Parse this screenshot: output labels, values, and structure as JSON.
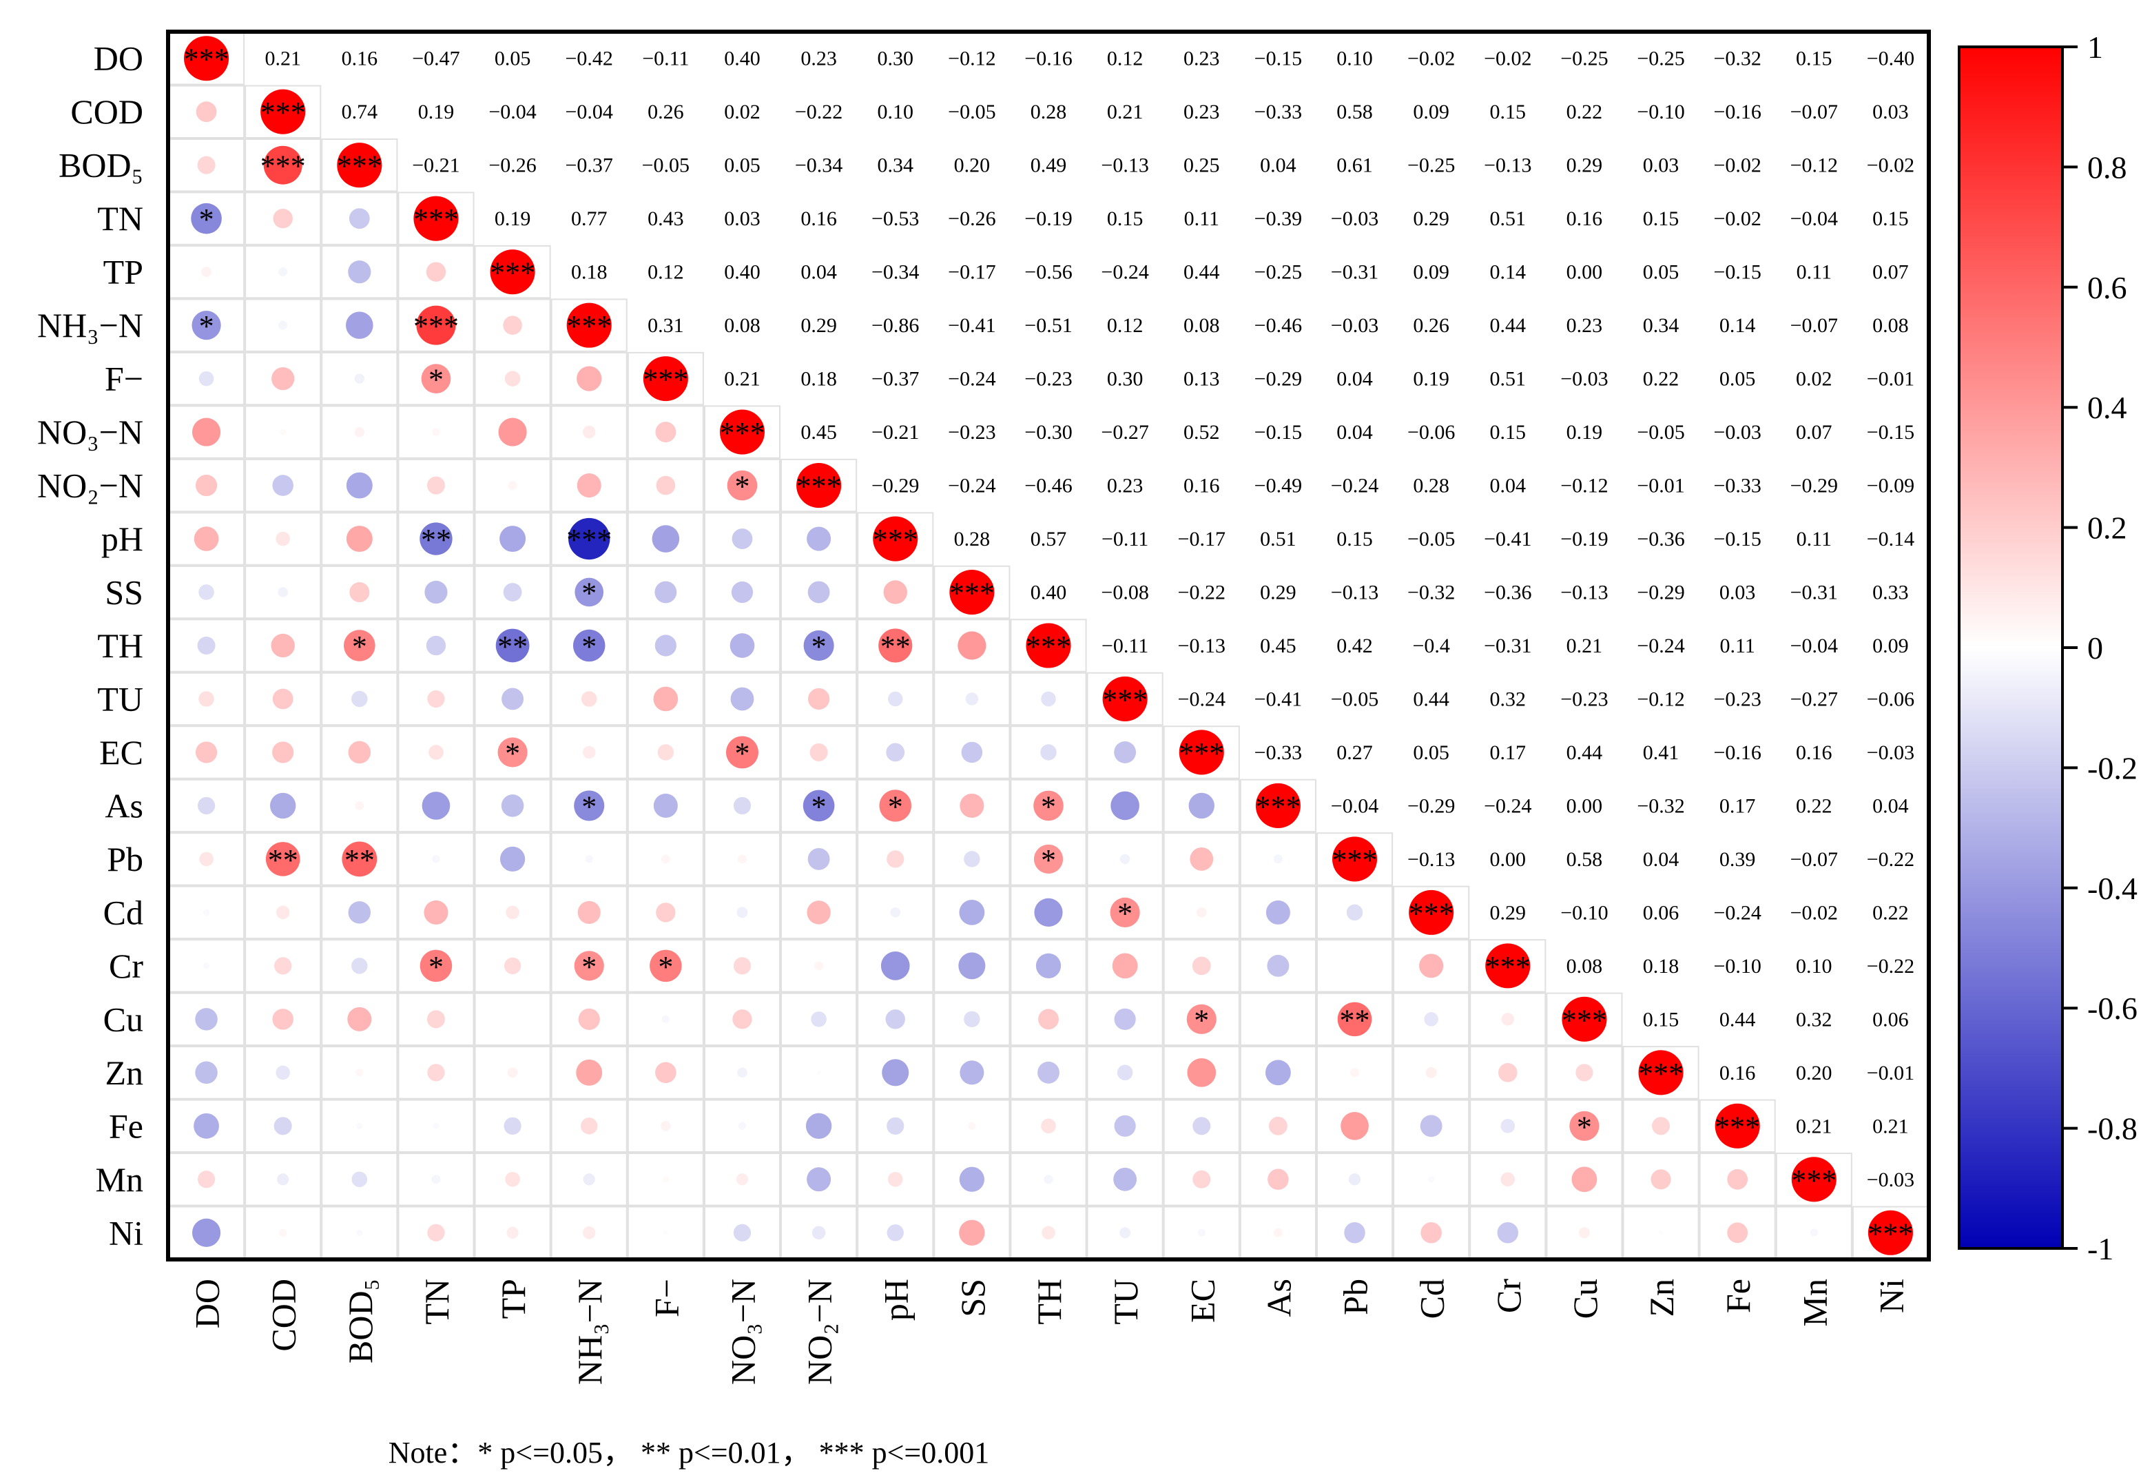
{
  "chart_data": {
    "type": "heatmap",
    "title": "",
    "variables": [
      "DO",
      "COD",
      "BOD₅",
      "TN",
      "TP",
      "NH₃−N",
      "F−",
      "NO₃−N",
      "NO₂−N",
      "pH",
      "SS",
      "TH",
      "TU",
      "EC",
      "As",
      "Pb",
      "Cd",
      "Cr",
      "Cu",
      "Zn",
      "Fe",
      "Mn",
      "Ni"
    ],
    "matrix": [
      [
        1,
        0.21,
        0.16,
        -0.47,
        0.05,
        -0.42,
        -0.11,
        0.4,
        0.23,
        0.3,
        -0.12,
        -0.16,
        0.12,
        0.23,
        -0.15,
        0.1,
        -0.02,
        -0.02,
        -0.25,
        -0.25,
        -0.32,
        0.15,
        -0.4
      ],
      [
        0.21,
        1,
        0.74,
        0.19,
        -0.04,
        -0.04,
        0.26,
        0.02,
        -0.22,
        0.1,
        -0.05,
        0.28,
        0.21,
        0.23,
        -0.33,
        0.58,
        0.09,
        0.15,
        0.22,
        -0.1,
        -0.16,
        -0.07,
        0.03
      ],
      [
        0.16,
        0.74,
        1,
        -0.21,
        -0.26,
        -0.37,
        -0.05,
        0.05,
        -0.34,
        0.34,
        0.2,
        0.49,
        -0.13,
        0.25,
        0.04,
        0.61,
        -0.25,
        -0.13,
        0.29,
        0.03,
        -0.02,
        -0.12,
        -0.02
      ],
      [
        -0.47,
        0.19,
        -0.21,
        1,
        0.19,
        0.77,
        0.43,
        0.03,
        0.16,
        -0.53,
        -0.26,
        -0.19,
        0.15,
        0.11,
        -0.39,
        -0.03,
        0.29,
        0.51,
        0.16,
        0.15,
        -0.02,
        -0.04,
        0.15
      ],
      [
        0.05,
        -0.04,
        -0.26,
        0.19,
        1,
        0.18,
        0.12,
        0.4,
        0.04,
        -0.34,
        -0.17,
        -0.56,
        -0.24,
        0.44,
        -0.25,
        -0.31,
        0.09,
        0.14,
        0.0,
        0.05,
        -0.15,
        0.11,
        0.07
      ],
      [
        -0.42,
        -0.04,
        -0.37,
        0.77,
        0.18,
        1,
        0.31,
        0.08,
        0.29,
        -0.86,
        -0.41,
        -0.51,
        0.12,
        0.08,
        -0.46,
        -0.03,
        0.26,
        0.44,
        0.23,
        0.34,
        0.14,
        -0.07,
        0.08
      ],
      [
        -0.11,
        0.26,
        -0.05,
        0.43,
        0.12,
        0.31,
        1,
        0.21,
        0.18,
        -0.37,
        -0.24,
        -0.23,
        0.3,
        0.13,
        -0.29,
        0.04,
        0.19,
        0.51,
        -0.03,
        0.22,
        0.05,
        0.02,
        -0.01
      ],
      [
        0.4,
        0.02,
        0.05,
        0.03,
        0.4,
        0.08,
        0.21,
        1,
        0.45,
        -0.21,
        -0.23,
        -0.3,
        -0.27,
        0.52,
        -0.15,
        0.04,
        -0.06,
        0.15,
        0.19,
        -0.05,
        -0.03,
        0.07,
        -0.15
      ],
      [
        0.23,
        -0.22,
        -0.34,
        0.16,
        0.04,
        0.29,
        0.18,
        0.45,
        1,
        -0.29,
        -0.24,
        -0.46,
        0.23,
        0.16,
        -0.49,
        -0.24,
        0.28,
        0.04,
        -0.12,
        -0.01,
        -0.33,
        -0.29,
        -0.09
      ],
      [
        0.3,
        0.1,
        0.34,
        -0.53,
        -0.34,
        -0.86,
        -0.37,
        -0.21,
        -0.29,
        1,
        0.28,
        0.57,
        -0.11,
        -0.17,
        0.51,
        0.15,
        -0.05,
        -0.41,
        -0.19,
        -0.36,
        -0.15,
        0.11,
        -0.14
      ],
      [
        -0.12,
        -0.05,
        0.2,
        -0.26,
        -0.17,
        -0.41,
        -0.24,
        -0.23,
        -0.24,
        0.28,
        1,
        0.4,
        -0.08,
        -0.22,
        0.29,
        -0.13,
        -0.32,
        -0.36,
        -0.13,
        -0.29,
        0.03,
        -0.31,
        0.33
      ],
      [
        -0.16,
        0.28,
        0.49,
        -0.19,
        -0.56,
        -0.51,
        -0.23,
        -0.3,
        -0.46,
        0.57,
        0.4,
        1,
        -0.11,
        -0.13,
        0.45,
        0.42,
        -0.4,
        -0.31,
        0.21,
        -0.24,
        0.11,
        -0.04,
        0.09
      ],
      [
        0.12,
        0.21,
        -0.13,
        0.15,
        -0.24,
        0.12,
        0.3,
        -0.27,
        0.23,
        -0.11,
        -0.08,
        -0.11,
        1,
        -0.24,
        -0.41,
        -0.05,
        0.44,
        0.32,
        -0.23,
        -0.12,
        -0.23,
        -0.27,
        -0.06
      ],
      [
        0.23,
        0.23,
        0.25,
        0.11,
        0.44,
        0.08,
        0.13,
        0.52,
        0.16,
        -0.17,
        -0.22,
        -0.13,
        -0.24,
        1,
        -0.33,
        0.27,
        0.05,
        0.17,
        0.44,
        0.41,
        -0.16,
        0.16,
        -0.03
      ],
      [
        -0.15,
        -0.33,
        0.04,
        -0.39,
        -0.25,
        -0.46,
        -0.29,
        -0.15,
        -0.49,
        0.51,
        0.29,
        0.45,
        -0.41,
        -0.33,
        1,
        -0.04,
        -0.29,
        -0.24,
        0.0,
        -0.32,
        0.17,
        0.22,
        0.04
      ],
      [
        0.1,
        0.58,
        0.61,
        -0.03,
        -0.31,
        -0.03,
        0.04,
        0.04,
        -0.24,
        0.15,
        -0.13,
        0.42,
        -0.05,
        0.27,
        -0.04,
        1,
        -0.13,
        0.0,
        0.58,
        0.04,
        0.39,
        -0.07,
        -0.22
      ],
      [
        -0.02,
        0.09,
        -0.25,
        0.29,
        0.09,
        0.26,
        0.19,
        -0.06,
        0.28,
        -0.05,
        -0.32,
        -0.4,
        0.44,
        0.05,
        -0.29,
        -0.13,
        1,
        0.29,
        -0.1,
        0.06,
        -0.24,
        -0.02,
        0.22
      ],
      [
        -0.02,
        0.15,
        -0.13,
        0.51,
        0.14,
        0.44,
        0.51,
        0.15,
        0.04,
        -0.41,
        -0.36,
        -0.31,
        0.32,
        0.17,
        -0.24,
        0.0,
        0.29,
        1,
        0.08,
        0.18,
        -0.1,
        0.1,
        -0.22
      ],
      [
        -0.25,
        0.22,
        0.29,
        0.16,
        0.0,
        0.23,
        -0.03,
        0.19,
        -0.12,
        -0.19,
        -0.13,
        0.21,
        -0.23,
        0.44,
        0.0,
        0.58,
        -0.1,
        0.08,
        1,
        0.15,
        0.44,
        0.32,
        0.06
      ],
      [
        -0.25,
        -0.1,
        0.03,
        0.15,
        0.05,
        0.34,
        0.22,
        -0.05,
        -0.01,
        -0.36,
        -0.29,
        -0.24,
        -0.12,
        0.41,
        -0.32,
        0.04,
        0.06,
        0.18,
        0.15,
        1,
        0.16,
        0.2,
        -0.01
      ],
      [
        -0.32,
        -0.16,
        -0.02,
        -0.02,
        -0.15,
        0.14,
        0.05,
        -0.03,
        -0.33,
        -0.15,
        0.03,
        0.11,
        -0.23,
        -0.16,
        0.17,
        0.39,
        -0.24,
        -0.1,
        0.44,
        0.16,
        1,
        0.21,
        0.21
      ],
      [
        0.15,
        -0.07,
        -0.12,
        -0.04,
        0.11,
        -0.07,
        0.02,
        0.07,
        -0.29,
        0.11,
        -0.31,
        -0.04,
        -0.27,
        0.16,
        0.22,
        -0.07,
        -0.02,
        0.1,
        0.32,
        0.2,
        0.21,
        1,
        -0.03
      ],
      [
        -0.4,
        0.03,
        -0.02,
        0.15,
        0.07,
        0.08,
        -0.01,
        -0.15,
        -0.09,
        -0.14,
        0.33,
        0.09,
        -0.06,
        -0.03,
        0.04,
        -0.22,
        0.22,
        -0.22,
        0.06,
        -0.01,
        0.21,
        -0.03,
        1
      ]
    ],
    "upper_labels": [
      [
        "0.21",
        "0.16",
        "−0.47",
        "0.05",
        "−0.42",
        "−0.11",
        "0.40",
        "0.23",
        "0.30",
        "−0.12",
        "−0.16",
        "0.12",
        "0.23",
        "−0.15",
        "0.10",
        "−0.02",
        "−0.02",
        "−0.25",
        "−0.25",
        "−0.32",
        "0.15",
        "−0.40"
      ],
      [
        "0.74",
        "0.19",
        "−0.04",
        "−0.04",
        "0.26",
        "0.02",
        "−0.22",
        "0.10",
        "−0.05",
        "0.28",
        "0.21",
        "0.23",
        "−0.33",
        "0.58",
        "0.09",
        "0.15",
        "0.22",
        "−0.10",
        "−0.16",
        "−0.07",
        "0.03"
      ],
      [
        "−0.21",
        "−0.26",
        "−0.37",
        "−0.05",
        "0.05",
        "−0.34",
        "0.34",
        "0.20",
        "0.49",
        "−0.13",
        "0.25",
        "0.04",
        "0.61",
        "−0.25",
        "−0.13",
        "0.29",
        "0.03",
        "−0.02",
        "−0.12",
        "−0.02"
      ],
      [
        "0.19",
        "0.77",
        "0.43",
        "0.03",
        "0.16",
        "−0.53",
        "−0.26",
        "−0.19",
        "0.15",
        "0.11",
        "−0.39",
        "−0.03",
        "0.29",
        "0.51",
        "0.16",
        "0.15",
        "−0.02",
        "−0.04",
        "0.15"
      ],
      [
        "0.18",
        "0.12",
        "0.40",
        "0.04",
        "−0.34",
        "−0.17",
        "−0.56",
        "−0.24",
        "0.44",
        "−0.25",
        "−0.31",
        "0.09",
        "0.14",
        "0.00",
        "0.05",
        "−0.15",
        "0.11",
        "0.07"
      ],
      [
        "0.31",
        "0.08",
        "0.29",
        "−0.86",
        "−0.41",
        "−0.51",
        "0.12",
        "0.08",
        "−0.46",
        "−0.03",
        "0.26",
        "0.44",
        "0.23",
        "0.34",
        "0.14",
        "−0.07",
        "0.08"
      ],
      [
        "0.21",
        "0.18",
        "−0.37",
        "−0.24",
        "−0.23",
        "0.30",
        "0.13",
        "−0.29",
        "0.04",
        "0.19",
        "0.51",
        "−0.03",
        "0.22",
        "0.05",
        "0.02",
        "−0.01"
      ],
      [
        "0.45",
        "−0.21",
        "−0.23",
        "−0.30",
        "−0.27",
        "0.52",
        "−0.15",
        "0.04",
        "−0.06",
        "0.15",
        "0.19",
        "−0.05",
        "−0.03",
        "0.07",
        "−0.15"
      ],
      [
        "−0.29",
        "−0.24",
        "−0.46",
        "0.23",
        "0.16",
        "−0.49",
        "−0.24",
        "0.28",
        "0.04",
        "−0.12",
        "−0.01",
        "−0.33",
        "−0.29",
        "−0.09"
      ],
      [
        "0.28",
        "0.57",
        "−0.11",
        "−0.17",
        "0.51",
        "0.15",
        "−0.05",
        "−0.41",
        "−0.19",
        "−0.36",
        "−0.15",
        "0.11",
        "−0.14"
      ],
      [
        "0.40",
        "−0.08",
        "−0.22",
        "0.29",
        "−0.13",
        "−0.32",
        "−0.36",
        "−0.13",
        "−0.29",
        "0.03",
        "−0.31",
        "0.33"
      ],
      [
        "−0.11",
        "−0.13",
        "0.45",
        "0.42",
        "−0.4",
        "−0.31",
        "0.21",
        "−0.24",
        "0.11",
        "−0.04",
        "0.09"
      ],
      [
        "−0.24",
        "−0.41",
        "−0.05",
        "0.44",
        "0.32",
        "−0.23",
        "−0.12",
        "−0.23",
        "−0.27",
        "−0.06"
      ],
      [
        "−0.33",
        "0.27",
        "0.05",
        "0.17",
        "0.44",
        "0.41",
        "−0.16",
        "0.16",
        "−0.03"
      ],
      [
        "−0.04",
        "−0.29",
        "−0.24",
        "0.00",
        "−0.32",
        "0.17",
        "0.22",
        "0.04"
      ],
      [
        "−0.13",
        "0.00",
        "0.58",
        "0.04",
        "0.39",
        "−0.07",
        "−0.22"
      ],
      [
        "0.29",
        "−0.10",
        "0.06",
        "−0.24",
        "−0.02",
        "0.22"
      ],
      [
        "0.08",
        "0.18",
        "−0.10",
        "0.10",
        "−0.22"
      ],
      [
        "0.15",
        "0.44",
        "0.32",
        "0.06"
      ],
      [
        "0.16",
        "0.20",
        "−0.01"
      ],
      [
        "0.21",
        "0.21"
      ],
      [
        "−0.03"
      ],
      []
    ],
    "significance": {
      "0,0": "***",
      "1,1": "***",
      "2,1": "***",
      "2,2": "***",
      "3,0": "*",
      "3,3": "***",
      "4,4": "***",
      "5,0": "*",
      "5,3": "***",
      "5,5": "***",
      "6,3": "*",
      "6,6": "***",
      "7,7": "***",
      "8,7": "*",
      "8,8": "***",
      "9,3": "**",
      "9,5": "***",
      "9,9": "***",
      "10,5": "*",
      "10,10": "***",
      "11,2": "*",
      "11,4": "**",
      "11,5": "*",
      "11,8": "*",
      "11,9": "**",
      "11,11": "***",
      "12,12": "***",
      "13,4": "*",
      "13,7": "*",
      "13,13": "***",
      "14,5": "*",
      "14,8": "*",
      "14,9": "*",
      "14,11": "*",
      "14,14": "***",
      "15,1": "**",
      "15,2": "**",
      "15,11": "*",
      "15,15": "***",
      "16,12": "*",
      "16,16": "***",
      "17,3": "*",
      "17,5": "*",
      "17,6": "*",
      "17,17": "***",
      "18,13": "*",
      "18,15": "**",
      "18,18": "***",
      "19,19": "***",
      "20,18": "*",
      "20,20": "***",
      "21,21": "***",
      "22,22": "***"
    },
    "colorbar": {
      "range": [
        -1,
        1
      ],
      "ticks": [
        "1",
        "0.8",
        "0.6",
        "0.4",
        "0.2",
        "0",
        "-0.2",
        "-0.4",
        "-0.6",
        "-0.8",
        "-1"
      ],
      "colors": {
        "positive": "#ff0000",
        "zero": "#ffffff",
        "negative": "#0000b4"
      }
    }
  },
  "note": "Note：* p<=0.05，   ** p<=0.01，   *** p<=0.001"
}
